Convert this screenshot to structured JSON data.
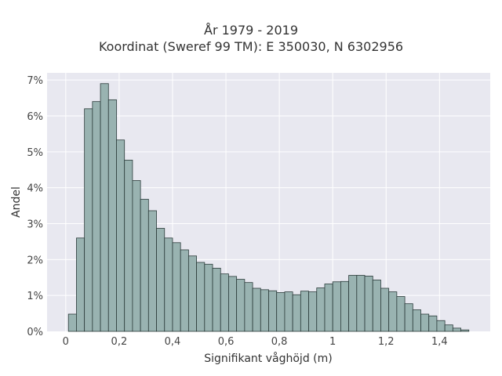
{
  "chart_data": {
    "type": "bar",
    "title": "År 1979 - 2019",
    "subtitle": "Koordinat (Sweref 99 TM): E 350030, N 6302956",
    "xlabel": "Signifikant våghöjd (m)",
    "ylabel": "Andel",
    "xlim": [
      -0.07,
      1.59
    ],
    "ylim": [
      0,
      7.2
    ],
    "x_ticks": [
      0,
      0.2,
      0.4,
      0.6,
      0.8,
      1,
      1.2,
      1.4
    ],
    "x_tick_labels": [
      "0",
      "0,2",
      "0,4",
      "0,6",
      "0,8",
      "1",
      "1,2",
      "1,4"
    ],
    "y_ticks": [
      0,
      1,
      2,
      3,
      4,
      5,
      6,
      7
    ],
    "y_tick_labels": [
      "0%",
      "1%",
      "2%",
      "3%",
      "4%",
      "5%",
      "6%",
      "7%"
    ],
    "grid": true,
    "bin_width": 0.03,
    "bins_start": 0.01,
    "values": [
      0.48,
      2.6,
      6.2,
      6.4,
      6.9,
      6.45,
      5.33,
      4.77,
      4.2,
      3.68,
      3.36,
      2.87,
      2.6,
      2.47,
      2.27,
      2.1,
      1.92,
      1.87,
      1.76,
      1.6,
      1.53,
      1.45,
      1.36,
      1.2,
      1.16,
      1.13,
      1.08,
      1.1,
      1.02,
      1.12,
      1.1,
      1.21,
      1.32,
      1.38,
      1.39,
      1.56,
      1.56,
      1.54,
      1.43,
      1.2,
      1.1,
      0.97,
      0.77,
      0.6,
      0.48,
      0.43,
      0.3,
      0.18,
      0.09,
      0.04
    ],
    "bar_color": "#99b3b1",
    "bar_edge_color": "#2b3b3a",
    "plot_background": "#e8e8f0"
  }
}
